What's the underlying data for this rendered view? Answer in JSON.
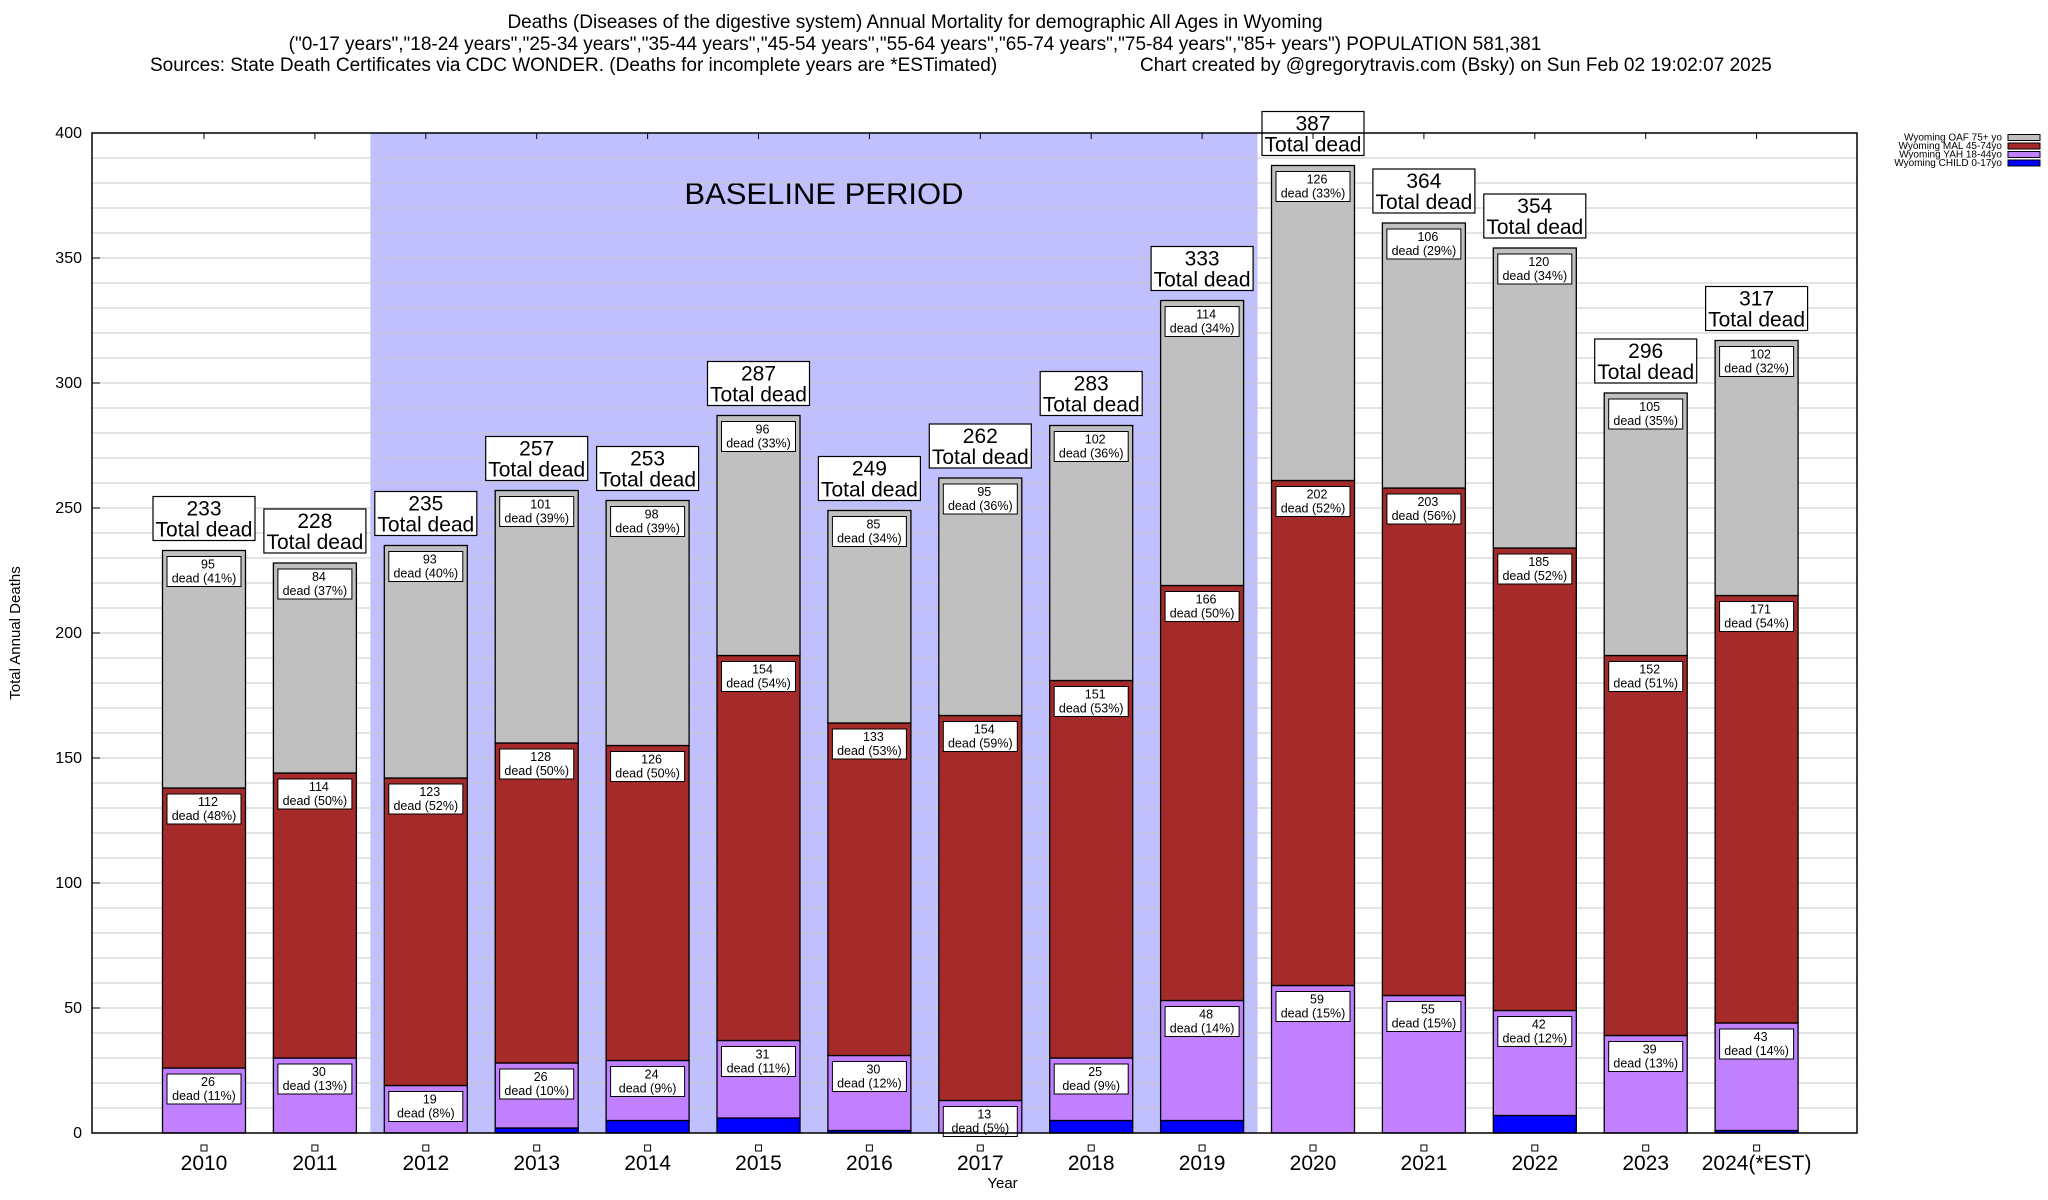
{
  "header": {
    "title_line1": "Deaths (Diseases of the digestive system) Annual Mortality for demographic All Ages in Wyoming",
    "title_line2": "(\"0-17 years\",\"18-24 years\",\"25-34 years\",\"35-44 years\",\"45-54 years\",\"55-64 years\",\"65-74 years\",\"75-84 years\",\"85+ years\") POPULATION 581,381",
    "sources": "Sources: State Death Certificates via CDC WONDER. (Deaths for incomplete years are *ESTimated)",
    "credit": "Chart created by @gregorytravis.com (Bsky) on Sun Feb 02 19:02:07 2025"
  },
  "chart_data": {
    "type": "bar",
    "stacked": true,
    "title": "Deaths (Diseases of the digestive system) Annual Mortality for demographic All Ages in Wyoming",
    "xlabel": "Year",
    "ylabel": "Total Annual Deaths",
    "ylim": [
      0,
      400
    ],
    "yticks": [
      0,
      50,
      100,
      150,
      200,
      250,
      300,
      350,
      400
    ],
    "minor_grid_step": 10,
    "grid": true,
    "legend_position": "top-right",
    "categories": [
      "2010",
      "2011",
      "2012",
      "2013",
      "2014",
      "2015",
      "2016",
      "2017",
      "2018",
      "2019",
      "2020",
      "2021",
      "2022",
      "2023",
      "2024(*EST)"
    ],
    "series": [
      {
        "name": "Wyoming CHILD 0-17yo",
        "color": "#0000ff",
        "values": [
          0,
          0,
          0,
          2,
          5,
          6,
          1,
          0,
          5,
          5,
          0,
          0,
          7,
          0,
          1
        ]
      },
      {
        "name": "Wyoming YAH 18-44yo",
        "color": "#c080ff",
        "values": [
          26,
          30,
          19,
          26,
          24,
          31,
          30,
          13,
          25,
          48,
          59,
          55,
          42,
          39,
          43
        ],
        "pct": [
          "11%",
          "13%",
          "8%",
          "10%",
          "9%",
          "11%",
          "12%",
          "5%",
          "9%",
          "14%",
          "15%",
          "15%",
          "12%",
          "13%",
          "14%"
        ]
      },
      {
        "name": "Wyoming MAL 45-74yo",
        "color": "#a52a2a",
        "values": [
          112,
          114,
          123,
          128,
          126,
          154,
          133,
          154,
          151,
          166,
          202,
          203,
          185,
          152,
          171
        ],
        "pct": [
          "48%",
          "50%",
          "52%",
          "50%",
          "50%",
          "54%",
          "53%",
          "59%",
          "53%",
          "50%",
          "52%",
          "56%",
          "52%",
          "51%",
          "54%"
        ]
      },
      {
        "name": "Wyoming OAF 75+ yo",
        "color": "#c0c0c0",
        "values": [
          95,
          84,
          93,
          101,
          98,
          96,
          85,
          95,
          102,
          114,
          126,
          106,
          120,
          105,
          102
        ],
        "pct": [
          "41%",
          "37%",
          "40%",
          "39%",
          "39%",
          "33%",
          "34%",
          "36%",
          "36%",
          "34%",
          "33%",
          "29%",
          "34%",
          "35%",
          "32%"
        ]
      }
    ],
    "totals": [
      233,
      228,
      235,
      257,
      253,
      287,
      249,
      262,
      283,
      333,
      387,
      364,
      354,
      296,
      317
    ],
    "total_label_suffix": "Total dead",
    "segment_label_word": "dead",
    "legend_order": [
      "Wyoming OAF 75+ yo",
      "Wyoming MAL 45-74yo",
      "Wyoming YAH 18-44yo",
      "Wyoming CHILD 0-17yo"
    ],
    "annotations": [
      {
        "text": "BASELINE PERIOD",
        "span": [
          "2012",
          "2019"
        ],
        "color": "#c0c0ff"
      }
    ]
  }
}
